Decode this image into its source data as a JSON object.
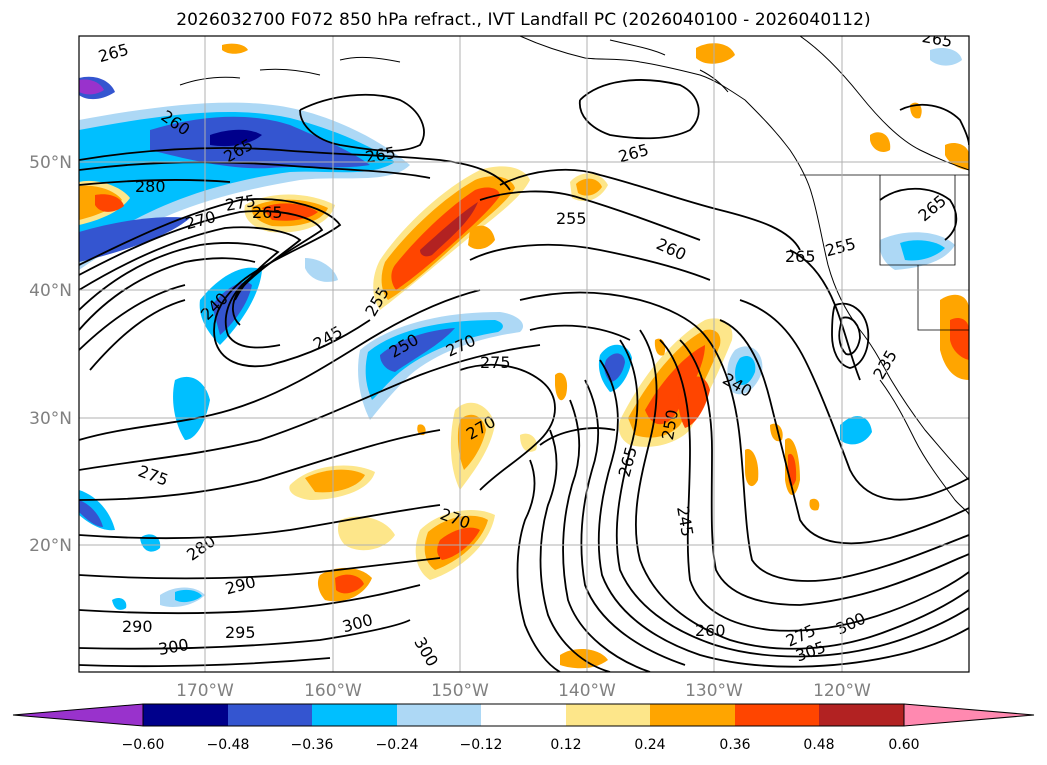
{
  "title": "2026032700 F072 850 hPa refract., IVT Landfall PC (2026040100 - 2026040112)",
  "lat_labels": [
    {
      "text": "50°N",
      "lat": 50
    },
    {
      "text": "40°N",
      "lat": 40
    },
    {
      "text": "30°N",
      "lat": 30
    },
    {
      "text": "20°N",
      "lat": 20
    }
  ],
  "lon_labels": [
    {
      "text": "170°W",
      "lon": -170
    },
    {
      "text": "160°W",
      "lon": -160
    },
    {
      "text": "150°W",
      "lon": -150
    },
    {
      "text": "140°W",
      "lon": -140
    },
    {
      "text": "130°W",
      "lon": -130
    },
    {
      "text": "120°W",
      "lon": -120
    }
  ],
  "contour_labels": [
    {
      "text": "265"
    },
    {
      "text": "260"
    },
    {
      "text": "265"
    },
    {
      "text": "265"
    },
    {
      "text": "280"
    },
    {
      "text": "275"
    },
    {
      "text": "270"
    },
    {
      "text": "265"
    },
    {
      "text": "265"
    },
    {
      "text": "255"
    },
    {
      "text": "260"
    },
    {
      "text": "265"
    },
    {
      "text": "255"
    },
    {
      "text": "265"
    },
    {
      "text": "240"
    },
    {
      "text": "255"
    },
    {
      "text": "245"
    },
    {
      "text": "250"
    },
    {
      "text": "270"
    },
    {
      "text": "275"
    },
    {
      "text": "235"
    },
    {
      "text": "240"
    },
    {
      "text": "250"
    },
    {
      "text": "265"
    },
    {
      "text": "270"
    },
    {
      "text": "275"
    },
    {
      "text": "270"
    },
    {
      "text": "280"
    },
    {
      "text": "245"
    },
    {
      "text": "290"
    },
    {
      "text": "290"
    },
    {
      "text": "295"
    },
    {
      "text": "300"
    },
    {
      "text": "300"
    },
    {
      "text": "300"
    },
    {
      "text": "260"
    },
    {
      "text": "275"
    },
    {
      "text": "305"
    },
    {
      "text": "300"
    },
    {
      "text": "265"
    }
  ],
  "colorbar": {
    "ticks": [
      "−0.60",
      "−0.48",
      "−0.36",
      "−0.24",
      "−0.12",
      "0.12",
      "0.24",
      "0.36",
      "0.48",
      "0.60"
    ],
    "colors": [
      "#9932cc",
      "#00008b",
      "#3455d0",
      "#00bfff",
      "#add8f5",
      "#ffffff",
      "#fde68a",
      "#ffa500",
      "#ff4500",
      "#b22222",
      "#ff89b0"
    ]
  }
}
